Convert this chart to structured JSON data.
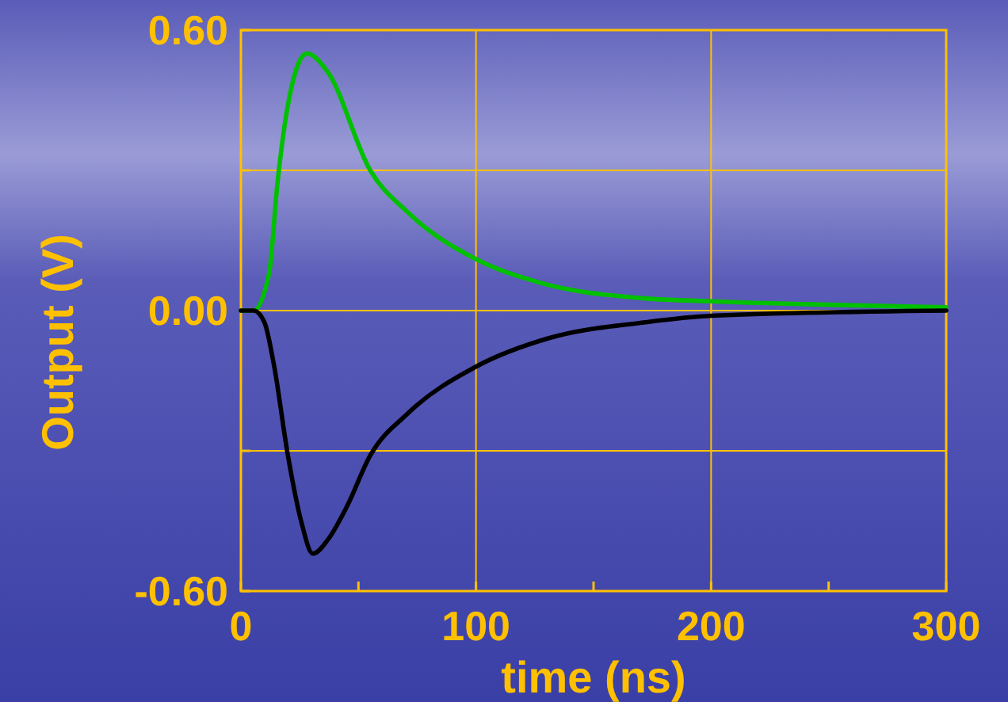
{
  "chart_data": {
    "type": "line",
    "xlabel": "time (ns)",
    "ylabel": "Output (V)",
    "xlim": [
      0,
      300
    ],
    "ylim": [
      -0.6,
      0.6
    ],
    "xticks": [
      0,
      {
        "value": 50,
        "label": null
      },
      100,
      {
        "value": 150,
        "label": null
      },
      200,
      {
        "value": 250,
        "label": null
      },
      300
    ],
    "yticks": [
      {
        "value": -0.6,
        "label": "-0.60"
      },
      {
        "value": -0.3,
        "label": null
      },
      {
        "value": 0,
        "label": "0.00"
      },
      {
        "value": 0.3,
        "label": null
      },
      {
        "value": 0.6,
        "label": "0.60"
      }
    ],
    "grid": true,
    "series": [
      {
        "color": "#00c000",
        "x": [
          0,
          5.4,
          12,
          15.5,
          20,
          28,
          37,
          55,
          71,
          100,
          127,
          172,
          200,
          300
        ],
        "values": [
          0,
          0,
          0.08,
          0.27,
          0.44,
          0.55,
          0.51,
          0.3,
          0.21,
          0.11,
          0.06,
          0.026,
          0.02,
          0.007
        ]
      },
      {
        "color": "#000000",
        "x": [
          0,
          5.4,
          10,
          14,
          20,
          25.6,
          30.6,
          37,
          45,
          55,
          71,
          100,
          131,
          172,
          200,
          300
        ],
        "values": [
          0,
          0,
          -0.025,
          -0.115,
          -0.31,
          -0.45,
          -0.52,
          -0.49,
          -0.42,
          -0.31,
          -0.22,
          -0.12,
          -0.059,
          -0.025,
          -0.011,
          0
        ]
      }
    ]
  }
}
